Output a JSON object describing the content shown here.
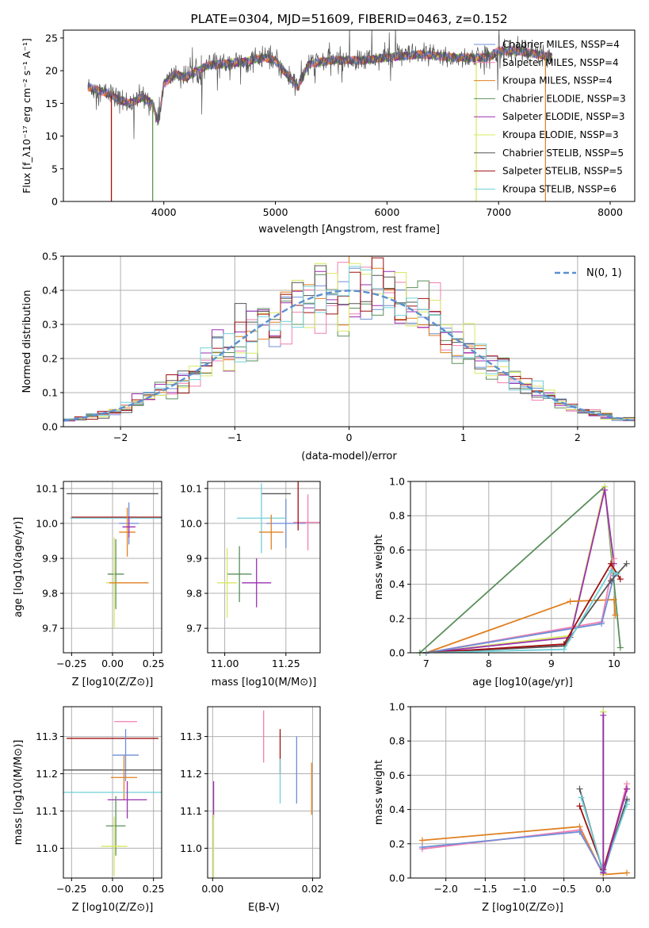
{
  "colors": {
    "chabrier_miles": "#6f8fd8",
    "salpeter_miles": "#f07fb0",
    "kroupa_miles": "#e08020",
    "chabrier_elodie": "#5a8f5a",
    "salpeter_elodie": "#9a2fb0",
    "kroupa_elodie": "#d8e860",
    "chabrier_stelib": "#555555",
    "salpeter_stelib": "#a01010",
    "kroupa_stelib": "#70d0d8",
    "normal": "#5b8fd0",
    "grid": "#b0b0b0"
  },
  "chart_data": [
    {
      "id": "spectrum",
      "type": "line",
      "title": "PLATE=0304, MJD=51609, FIBERID=0463, z=0.152",
      "xlabel": "wavelength [Angstrom, rest frame]",
      "ylabel": "Flux [f_λ10⁻¹⁷ erg cm⁻² s⁻¹ A⁻¹]",
      "xlim": [
        3100,
        8220
      ],
      "ylim": [
        0,
        26.2
      ],
      "xticks": [
        "4000",
        "5000",
        "6000",
        "7000",
        "8000"
      ],
      "yticks": [
        "0",
        "5",
        "10",
        "15",
        "20",
        "25"
      ],
      "grid": false,
      "legend_position": "top-right",
      "series": [
        {
          "name": "Chabrier MILES, N_SSP=4",
          "color_key": "chabrier_miles"
        },
        {
          "name": "Salpeter MILES, N_SSP=4",
          "color_key": "salpeter_miles"
        },
        {
          "name": "Kroupa MILES, N_SSP=4",
          "color_key": "kroupa_miles"
        },
        {
          "name": "Chabrier ELODIE, N_SSP=3",
          "color_key": "chabrier_elodie"
        },
        {
          "name": "Salpeter ELODIE, N_SSP=3",
          "color_key": "salpeter_elodie"
        },
        {
          "name": "Kroupa ELODIE, N_SSP=3",
          "color_key": "kroupa_elodie"
        },
        {
          "name": "Chabrier STELIB, N_SSP=5",
          "color_key": "chabrier_stelib"
        },
        {
          "name": "Salpeter STELIB, N_SSP=5",
          "color_key": "salpeter_stelib"
        },
        {
          "name": "Kroupa STELIB, N_SSP=6",
          "color_key": "kroupa_stelib"
        }
      ],
      "data_envelope": {
        "wavelength": [
          3320,
          3500,
          3600,
          3700,
          3800,
          3900,
          3950,
          4000,
          4100,
          4200,
          4300,
          4400,
          4500,
          4700,
          4900,
          5000,
          5100,
          5200,
          5300,
          5500,
          5800,
          6000,
          6300,
          6600,
          6900,
          7000,
          7200,
          7400,
          7500
        ],
        "flux": [
          17.5,
          16.5,
          15.5,
          15.0,
          16.0,
          15.0,
          12.0,
          18.0,
          19.5,
          19.0,
          20.0,
          20.8,
          21.0,
          21.3,
          22.0,
          21.5,
          19.5,
          17.5,
          21.0,
          21.6,
          21.6,
          22.0,
          22.5,
          22.0,
          22.0,
          23.0,
          23.0,
          22.3,
          22.0
        ]
      },
      "edge_drops": [
        {
          "color_key": "kroupa_miles",
          "wavelength": 3530
        },
        {
          "color_key": "salpeter_stelib",
          "wavelength": 3530
        },
        {
          "color_key": "kroupa_elodie",
          "wavelength": 3900
        },
        {
          "color_key": "chabrier_elodie",
          "wavelength": 3900
        },
        {
          "color_key": "kroupa_elodie",
          "wavelength": 6800
        },
        {
          "color_key": "kroupa_miles",
          "wavelength": 7420
        }
      ]
    },
    {
      "id": "residuals",
      "type": "step",
      "xlabel": "(data-model)/error",
      "ylabel": "Normed distribution",
      "xlim": [
        -2.5,
        2.5
      ],
      "ylim": [
        0,
        0.5
      ],
      "xticks": [
        "−2",
        "−1",
        "0",
        "1",
        "2"
      ],
      "yticks": [
        "0.0",
        "0.1",
        "0.2",
        "0.3",
        "0.4",
        "0.5"
      ],
      "grid": true,
      "legend_position": "top-right",
      "legend_label": "N(0, 1)",
      "bin_width": 0.1,
      "note": "histograms of normalized residuals for all nine models, close to a standard normal"
    },
    {
      "id": "age_z",
      "type": "errorbar",
      "xlabel": "Z [log10(Z/Z⊙)]",
      "ylabel": "age  [log10(age/yr)]",
      "xlim": [
        -0.3,
        0.3
      ],
      "ylim": [
        9.63,
        10.12
      ],
      "xticks": [
        "−0.25",
        "0.00",
        "0.25"
      ],
      "yticks": [
        "9.7",
        "9.8",
        "9.9",
        "10.0",
        "10.1"
      ],
      "grid": true,
      "points": [
        {
          "color_key": "chabrier_stelib",
          "x": 0.0,
          "xerr": 0.28,
          "y": 10.085,
          "yerr": 0.0
        },
        {
          "color_key": "kroupa_stelib",
          "x": 0.02,
          "xerr": 0.28,
          "y": 10.015,
          "yerr": 0.0
        },
        {
          "color_key": "salpeter_stelib",
          "x": 0.05,
          "xerr": 0.3,
          "y": 10.018,
          "yerr": 0.0
        },
        {
          "color_key": "chabrier_miles",
          "x": 0.1,
          "xerr": 0.06,
          "y": 10.0,
          "yerr": 0.06
        },
        {
          "color_key": "kroupa_miles",
          "x": 0.09,
          "xerr": 0.05,
          "y": 9.975,
          "yerr": 0.07
        },
        {
          "color_key": "salpeter_elodie",
          "x": 0.1,
          "xerr": 0.04,
          "y": 9.99,
          "yerr": 0.03
        },
        {
          "color_key": "chabrier_elodie",
          "x": 0.02,
          "xerr": 0.05,
          "y": 9.855,
          "yerr": 0.1
        },
        {
          "color_key": "kroupa_elodie",
          "x": 0.01,
          "xerr": 0.05,
          "y": 9.83,
          "yerr": 0.13
        },
        {
          "color_key": "kroupa_miles",
          "x": 0.1,
          "xerr": 0.12,
          "y": 9.83,
          "yerr": 0.0
        }
      ]
    },
    {
      "id": "age_mass",
      "type": "errorbar",
      "xlabel": "mass [log10(M/M⊙)]",
      "ylabel": "",
      "xlim": [
        10.93,
        11.39
      ],
      "ylim": [
        9.63,
        10.12
      ],
      "xticks": [
        "11.00",
        "11.25"
      ],
      "yticks": [
        "9.7",
        "9.8",
        "9.9",
        "10.0",
        "10.1"
      ],
      "grid": true,
      "points": [
        {
          "color_key": "chabrier_stelib",
          "x": 11.21,
          "xerr": 0.06,
          "y": 10.085,
          "yerr": 0.0
        },
        {
          "color_key": "chabrier_miles",
          "x": 11.25,
          "xerr": 0.08,
          "y": 10.0,
          "yerr": 0.07
        },
        {
          "color_key": "kroupa_stelib",
          "x": 11.15,
          "xerr": 0.1,
          "y": 10.015,
          "yerr": 0.1
        },
        {
          "color_key": "salpeter_miles",
          "x": 11.34,
          "xerr": 0.06,
          "y": 10.003,
          "yerr": 0.08
        },
        {
          "color_key": "salpeter_stelib",
          "x": 11.3,
          "xerr": 0.0,
          "y": 10.05,
          "yerr": 0.07
        },
        {
          "color_key": "kroupa_miles",
          "x": 11.19,
          "xerr": 0.05,
          "y": 9.975,
          "yerr": 0.05
        },
        {
          "color_key": "salpeter_elodie",
          "x": 11.13,
          "xerr": 0.06,
          "y": 9.83,
          "yerr": 0.07
        },
        {
          "color_key": "chabrier_elodie",
          "x": 11.06,
          "xerr": 0.05,
          "y": 9.855,
          "yerr": 0.08
        },
        {
          "color_key": "kroupa_elodie",
          "x": 11.01,
          "xerr": 0.04,
          "y": 9.83,
          "yerr": 0.1
        }
      ]
    },
    {
      "id": "weight_age",
      "type": "line",
      "xlabel": "age  [log10(age/yr)]",
      "ylabel": "mass weight",
      "xlim": [
        6.75,
        10.33
      ],
      "ylim": [
        0,
        1
      ],
      "xticks": [
        "7",
        "8",
        "9",
        "10"
      ],
      "yticks": [
        "0.0",
        "0.2",
        "0.4",
        "0.6",
        "0.8",
        "1.0"
      ],
      "grid": true,
      "series": [
        {
          "color_key": "chabrier_elodie",
          "x": [
            6.9,
            9.85,
            10.1
          ],
          "y": [
            0.0,
            0.97,
            0.03
          ]
        },
        {
          "color_key": "kroupa_elodie",
          "x": [
            7.0,
            9.3,
            9.85,
            10.0
          ],
          "y": [
            0.0,
            0.1,
            0.97,
            0.47
          ]
        },
        {
          "color_key": "salpeter_elodie",
          "x": [
            7.0,
            9.3,
            9.85,
            10.0
          ],
          "y": [
            0.0,
            0.09,
            0.95,
            0.52
          ]
        },
        {
          "color_key": "kroupa_miles",
          "x": [
            7.0,
            9.3,
            10.0,
            10.02
          ],
          "y": [
            0.0,
            0.3,
            0.31,
            0.22
          ]
        },
        {
          "color_key": "salpeter_miles",
          "x": [
            7.0,
            9.8,
            10.0
          ],
          "y": [
            0.0,
            0.18,
            0.55
          ]
        },
        {
          "color_key": "chabrier_miles",
          "x": [
            7.0,
            9.8,
            10.0
          ],
          "y": [
            0.0,
            0.17,
            0.45
          ]
        },
        {
          "color_key": "chabrier_stelib",
          "x": [
            7.0,
            9.2,
            9.95,
            10.2
          ],
          "y": [
            0.0,
            0.04,
            0.42,
            0.52
          ]
        },
        {
          "color_key": "salpeter_stelib",
          "x": [
            7.0,
            9.2,
            9.95,
            10.1
          ],
          "y": [
            0.0,
            0.05,
            0.52,
            0.43
          ]
        },
        {
          "color_key": "kroupa_stelib",
          "x": [
            7.0,
            9.2,
            9.95,
            10.05
          ],
          "y": [
            0.0,
            0.02,
            0.48,
            0.46
          ]
        }
      ]
    },
    {
      "id": "mass_z",
      "type": "errorbar",
      "xlabel": "Z [log10(Z/Z⊙)]",
      "ylabel": "mass [log10(M/M⊙)]",
      "xlim": [
        -0.3,
        0.3
      ],
      "ylim": [
        10.92,
        11.38
      ],
      "xticks": [
        "−0.25",
        "0.00",
        "0.25"
      ],
      "yticks": [
        "11.0",
        "11.1",
        "11.2",
        "11.3"
      ],
      "grid": true,
      "points": [
        {
          "color_key": "salpeter_miles",
          "x": 0.08,
          "xerr": 0.07,
          "y": 11.34,
          "yerr": 0.0
        },
        {
          "color_key": "salpeter_stelib",
          "x": 0.0,
          "xerr": 0.28,
          "y": 11.295,
          "yerr": 0.0
        },
        {
          "color_key": "chabrier_miles",
          "x": 0.08,
          "xerr": 0.08,
          "y": 11.25,
          "yerr": 0.07
        },
        {
          "color_key": "chabrier_stelib",
          "x": 0.0,
          "xerr": 0.3,
          "y": 11.21,
          "yerr": 0.0
        },
        {
          "color_key": "kroupa_miles",
          "x": 0.07,
          "xerr": 0.08,
          "y": 11.19,
          "yerr": 0.06
        },
        {
          "color_key": "kroupa_stelib",
          "x": 0.0,
          "xerr": 0.3,
          "y": 11.15,
          "yerr": 0.0
        },
        {
          "color_key": "salpeter_elodie",
          "x": 0.09,
          "xerr": 0.12,
          "y": 11.13,
          "yerr": 0.05
        },
        {
          "color_key": "chabrier_elodie",
          "x": 0.02,
          "xerr": 0.06,
          "y": 11.06,
          "yerr": 0.08
        },
        {
          "color_key": "kroupa_elodie",
          "x": 0.01,
          "xerr": 0.08,
          "y": 11.005,
          "yerr": 0.08
        }
      ]
    },
    {
      "id": "mass_ebv",
      "type": "errorbar",
      "xlabel": "E(B-V)",
      "ylabel": "",
      "xlim": [
        -0.001,
        0.0215
      ],
      "ylim": [
        10.92,
        11.38
      ],
      "xticks": [
        "0.00",
        "0.02"
      ],
      "yticks": [
        "11.0",
        "11.1",
        "11.2",
        "11.3"
      ],
      "grid": true,
      "points": [
        {
          "color_key": "salpeter_miles",
          "x": 0.0102,
          "xerr": 0.0,
          "y": 11.3,
          "yerr": 0.07
        },
        {
          "color_key": "salpeter_stelib",
          "x": 0.0135,
          "xerr": 0.0,
          "y": 11.26,
          "yerr": 0.06
        },
        {
          "color_key": "chabrier_miles",
          "x": 0.0168,
          "xerr": 0.0,
          "y": 11.21,
          "yerr": 0.09
        },
        {
          "color_key": "kroupa_miles",
          "x": 0.0198,
          "xerr": 0.0,
          "y": 11.16,
          "yerr": 0.07
        },
        {
          "color_key": "kroupa_stelib",
          "x": 0.0135,
          "xerr": 0.0,
          "y": 11.18,
          "yerr": 0.06
        },
        {
          "color_key": "salpeter_elodie",
          "x": 0.0002,
          "xerr": 0.0,
          "y": 11.13,
          "yerr": 0.05
        },
        {
          "color_key": "kroupa_elodie",
          "x": 0.0002,
          "xerr": 0.0,
          "y": 11.0,
          "yerr": 0.09
        }
      ]
    },
    {
      "id": "weight_z",
      "type": "line",
      "xlabel": "Z [log10(Z/Z⊙)]",
      "ylabel": "mass weight",
      "xlim": [
        -2.45,
        0.4
      ],
      "ylim": [
        0,
        1
      ],
      "xticks": [
        "−2.0",
        "−1.5",
        "−1.0",
        "−0.5",
        "0.0"
      ],
      "yticks": [
        "0.0",
        "0.2",
        "0.4",
        "0.6",
        "0.8",
        "1.0"
      ],
      "grid": true,
      "series": [
        {
          "color_key": "kroupa_miles",
          "x": [
            -2.3,
            -0.3,
            0.0,
            0.3
          ],
          "y": [
            0.22,
            0.3,
            0.02,
            0.03
          ]
        },
        {
          "color_key": "salpeter_miles",
          "x": [
            -2.3,
            -0.3,
            0.0,
            0.3
          ],
          "y": [
            0.17,
            0.28,
            0.02,
            0.55
          ]
        },
        {
          "color_key": "chabrier_miles",
          "x": [
            -2.3,
            -0.3,
            0.0,
            0.3
          ],
          "y": [
            0.18,
            0.27,
            0.03,
            0.45
          ]
        },
        {
          "color_key": "chabrier_stelib",
          "x": [
            -0.3,
            0.0,
            0.3
          ],
          "y": [
            0.52,
            0.03,
            0.46
          ]
        },
        {
          "color_key": "salpeter_stelib",
          "x": [
            -0.3,
            0.0,
            0.3
          ],
          "y": [
            0.42,
            0.05,
            0.52
          ]
        },
        {
          "color_key": "kroupa_stelib",
          "x": [
            -0.28,
            0.0,
            0.3
          ],
          "y": [
            0.47,
            0.04,
            0.43
          ]
        },
        {
          "color_key": "chabrier_elodie",
          "x": [
            0.0,
            0.0
          ],
          "y": [
            0.97,
            0.03
          ]
        },
        {
          "color_key": "kroupa_elodie",
          "x": [
            0.0,
            0.0
          ],
          "y": [
            0.97,
            0.02
          ]
        },
        {
          "color_key": "salpeter_elodie",
          "x": [
            0.0,
            0.0,
            0.3
          ],
          "y": [
            0.95,
            0.03,
            0.52
          ]
        }
      ]
    }
  ]
}
